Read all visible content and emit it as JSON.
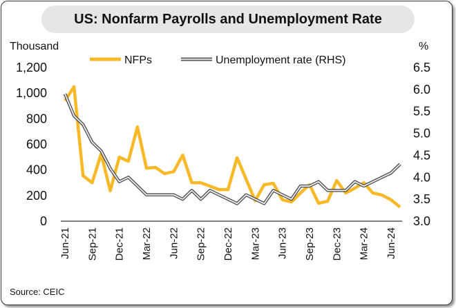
{
  "chart_data": {
    "type": "line",
    "title": "US: Nonfarm Payrolls and Unemployment Rate",
    "ylabel": "Thousand",
    "y2label": "%",
    "ylim": [
      0,
      1200
    ],
    "y2lim": [
      3.0,
      6.5
    ],
    "yticks": [
      "0",
      "200",
      "400",
      "600",
      "800",
      "1,000",
      "1,200"
    ],
    "y2ticks": [
      "3.0",
      "3.5",
      "4.0",
      "4.5",
      "5.0",
      "5.5",
      "6.0",
      "6.5"
    ],
    "xtick_labels": [
      "Jun-21",
      "Sep-21",
      "Dec-21",
      "Mar-22",
      "Jun-22",
      "Sep-22",
      "Dec-22",
      "Mar-23",
      "Jun-23",
      "Sep-23",
      "Dec-23",
      "Mar-24",
      "Jun-24"
    ],
    "x": [
      "Jun-21",
      "Jul-21",
      "Aug-21",
      "Sep-21",
      "Oct-21",
      "Nov-21",
      "Dec-21",
      "Jan-22",
      "Feb-22",
      "Mar-22",
      "Apr-22",
      "May-22",
      "Jun-22",
      "Jul-22",
      "Aug-22",
      "Sep-22",
      "Oct-22",
      "Nov-22",
      "Dec-22",
      "Jan-23",
      "Feb-23",
      "Mar-23",
      "Apr-23",
      "May-23",
      "Jun-23",
      "Jul-23",
      "Aug-23",
      "Sep-23",
      "Oct-23",
      "Nov-23",
      "Dec-23",
      "Jan-24",
      "Feb-24",
      "Mar-24",
      "Apr-24",
      "May-24",
      "Jun-24",
      "Jul-24"
    ],
    "series": [
      {
        "name": "NFPs",
        "axis": "left",
        "color": "#f7b928",
        "values": [
          940,
          1050,
          355,
          300,
          527,
          237,
          500,
          468,
          736,
          414,
          420,
          371,
          387,
          516,
          301,
          300,
          274,
          247,
          247,
          495,
          328,
          160,
          285,
          296,
          167,
          150,
          220,
          285,
          140,
          156,
          317,
          220,
          258,
          300,
          220,
          204,
          167,
          110
        ]
      },
      {
        "name": "Unemployment rate (RHS)",
        "axis": "right",
        "color": "#555555",
        "values": [
          5.9,
          5.4,
          5.2,
          4.8,
          4.6,
          4.2,
          3.9,
          4.0,
          3.8,
          3.6,
          3.6,
          3.6,
          3.6,
          3.5,
          3.7,
          3.5,
          3.7,
          3.6,
          3.5,
          3.4,
          3.6,
          3.5,
          3.4,
          3.7,
          3.6,
          3.5,
          3.8,
          3.8,
          3.9,
          3.7,
          3.7,
          3.7,
          3.9,
          3.8,
          3.9,
          4.0,
          4.1,
          4.3
        ]
      }
    ],
    "legend": "top",
    "grid": false,
    "source": "Source: CEIC"
  }
}
